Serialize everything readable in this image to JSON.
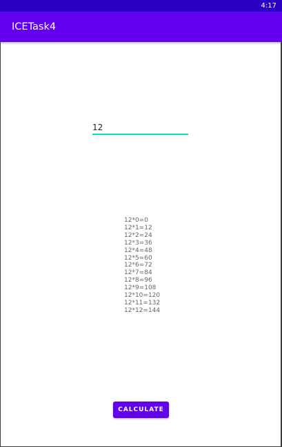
{
  "status_bar": {
    "time": "4:17"
  },
  "app_bar": {
    "title": "ICETask4"
  },
  "input": {
    "value": "12"
  },
  "results": [
    "12*0=0",
    "12*1=12",
    "12*2=24",
    "12*3=36",
    "12*4=48",
    "12*5=60",
    "12*6=72",
    "12*7=84",
    "12*8=96",
    "12*9=108",
    "12*10=120",
    "12*11=132",
    "12*12=144"
  ],
  "button": {
    "label": "CALCULATE"
  },
  "colors": {
    "primary": "#6200ee",
    "primary_dark": "#2c00c3",
    "accent": "#03dac5"
  }
}
